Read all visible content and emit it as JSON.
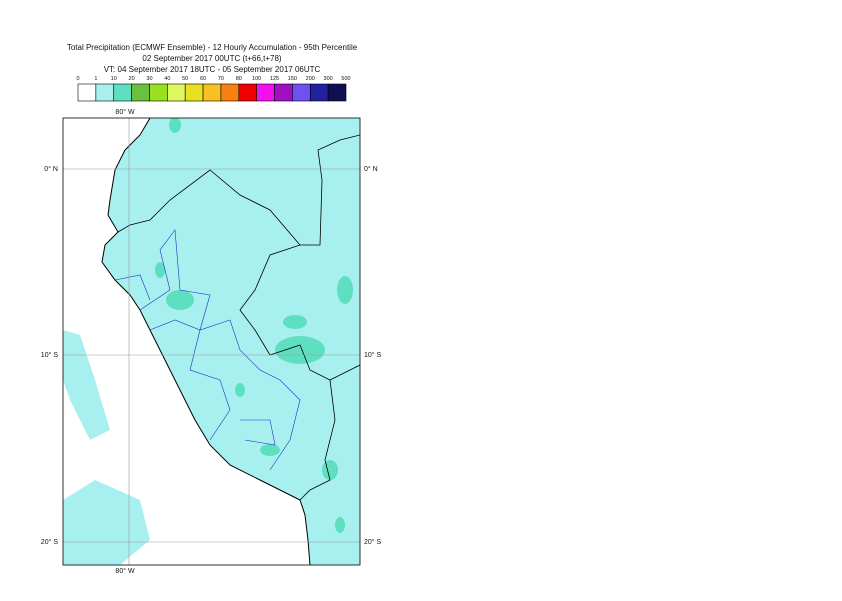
{
  "title": {
    "lines": [
      "Total Precipitation (ECMWF Ensemble) - 12 Hourly Accumulation - 95th Percentile",
      "02 September 2017 00UTC (t+66,t+78)",
      "VT: 04 September 2017 18UTC - 05 September 2017 06UTC"
    ]
  },
  "legend": {
    "labels": [
      "0",
      "1",
      "10",
      "20",
      "30",
      "40",
      "50",
      "60",
      "70",
      "80",
      "100",
      "125",
      "150",
      "200",
      "300",
      "500"
    ],
    "colors": [
      "#ffffff",
      "#a8f0f0",
      "#5ee0c0",
      "#6cc040",
      "#98e020",
      "#e0f860",
      "#e8e020",
      "#f8c020",
      "#f88010",
      "#f00000",
      "#f010f0",
      "#a010c0",
      "#7050f0",
      "#2020a0",
      "#101050"
    ]
  },
  "map": {
    "lon_labels_top": [
      "80° W"
    ],
    "lon_labels_bottom": [
      "80° W"
    ],
    "lat_labels_left": [
      "0° N",
      "10° S",
      "20° S"
    ],
    "lat_labels_right": [
      "0° N",
      "10° S",
      "20° S"
    ]
  }
}
